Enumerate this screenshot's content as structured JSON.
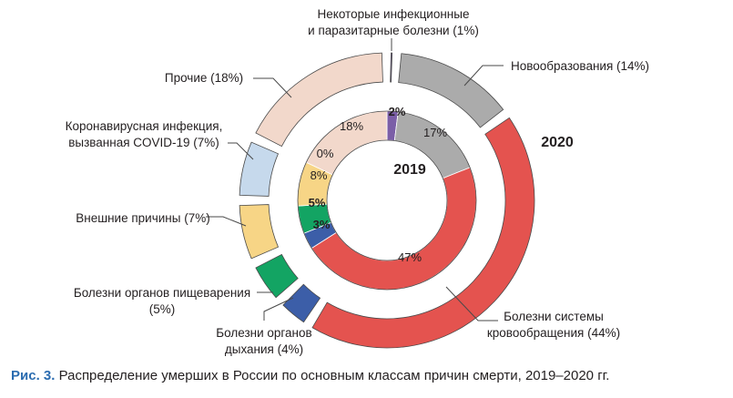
{
  "caption": {
    "label": "Рис. 3.",
    "text": " Распределение умерших в России по основным классам причин смерти, 2019–2020 гг."
  },
  "chart_data": {
    "type": "donut",
    "rings": [
      {
        "name": "2020",
        "year_label": "2020",
        "slices": [
          {
            "key": "infect",
            "value": 1,
            "color": "#7b5ea7",
            "label": [
              "Некоторые инфекционные",
              "и паразитарные болезни (1%)"
            ]
          },
          {
            "key": "neo",
            "value": 14,
            "color": "#ababab",
            "label": [
              "Новообразования (14%)"
            ]
          },
          {
            "key": "circ",
            "value": 44,
            "color": "#e4534f",
            "label": [
              "Болезни системы",
              "кровообращения (44%)"
            ]
          },
          {
            "key": "resp",
            "value": 4,
            "color": "#3c5ea8",
            "label": [
              "Болезни органов",
              "дыхания (4%)"
            ]
          },
          {
            "key": "digest",
            "value": 5,
            "color": "#13a463",
            "label": [
              "Болезни органов пищеварения",
              "(5%)"
            ]
          },
          {
            "key": "ext",
            "value": 7,
            "color": "#f7d586",
            "label": [
              "Внешние причины (7%)"
            ]
          },
          {
            "key": "covid",
            "value": 7,
            "color": "#c6d9ec",
            "label": [
              "Коронавирусная инфекция,",
              "вызванная COVID-19 (7%)"
            ]
          },
          {
            "key": "other",
            "value": 18,
            "color": "#f2d8cb",
            "label": [
              "Прочие (18%)"
            ]
          }
        ]
      },
      {
        "name": "2019",
        "year_label": "2019",
        "slices": [
          {
            "key": "infect",
            "value": 2,
            "color": "#7b5ea7",
            "label": "2%"
          },
          {
            "key": "neo",
            "value": 17,
            "color": "#ababab",
            "label": "17%"
          },
          {
            "key": "circ",
            "value": 47,
            "color": "#e4534f",
            "label": "47%"
          },
          {
            "key": "resp",
            "value": 3,
            "color": "#3c5ea8",
            "label": "3%"
          },
          {
            "key": "digest",
            "value": 5,
            "color": "#13a463",
            "label": "5%"
          },
          {
            "key": "ext",
            "value": 8,
            "color": "#f7d586",
            "label": "8%"
          },
          {
            "key": "covid",
            "value": 0,
            "color": "#c6d9ec",
            "label": "0%"
          },
          {
            "key": "other",
            "value": 18,
            "color": "#f2d8cb",
            "label": "18%"
          }
        ]
      }
    ]
  }
}
